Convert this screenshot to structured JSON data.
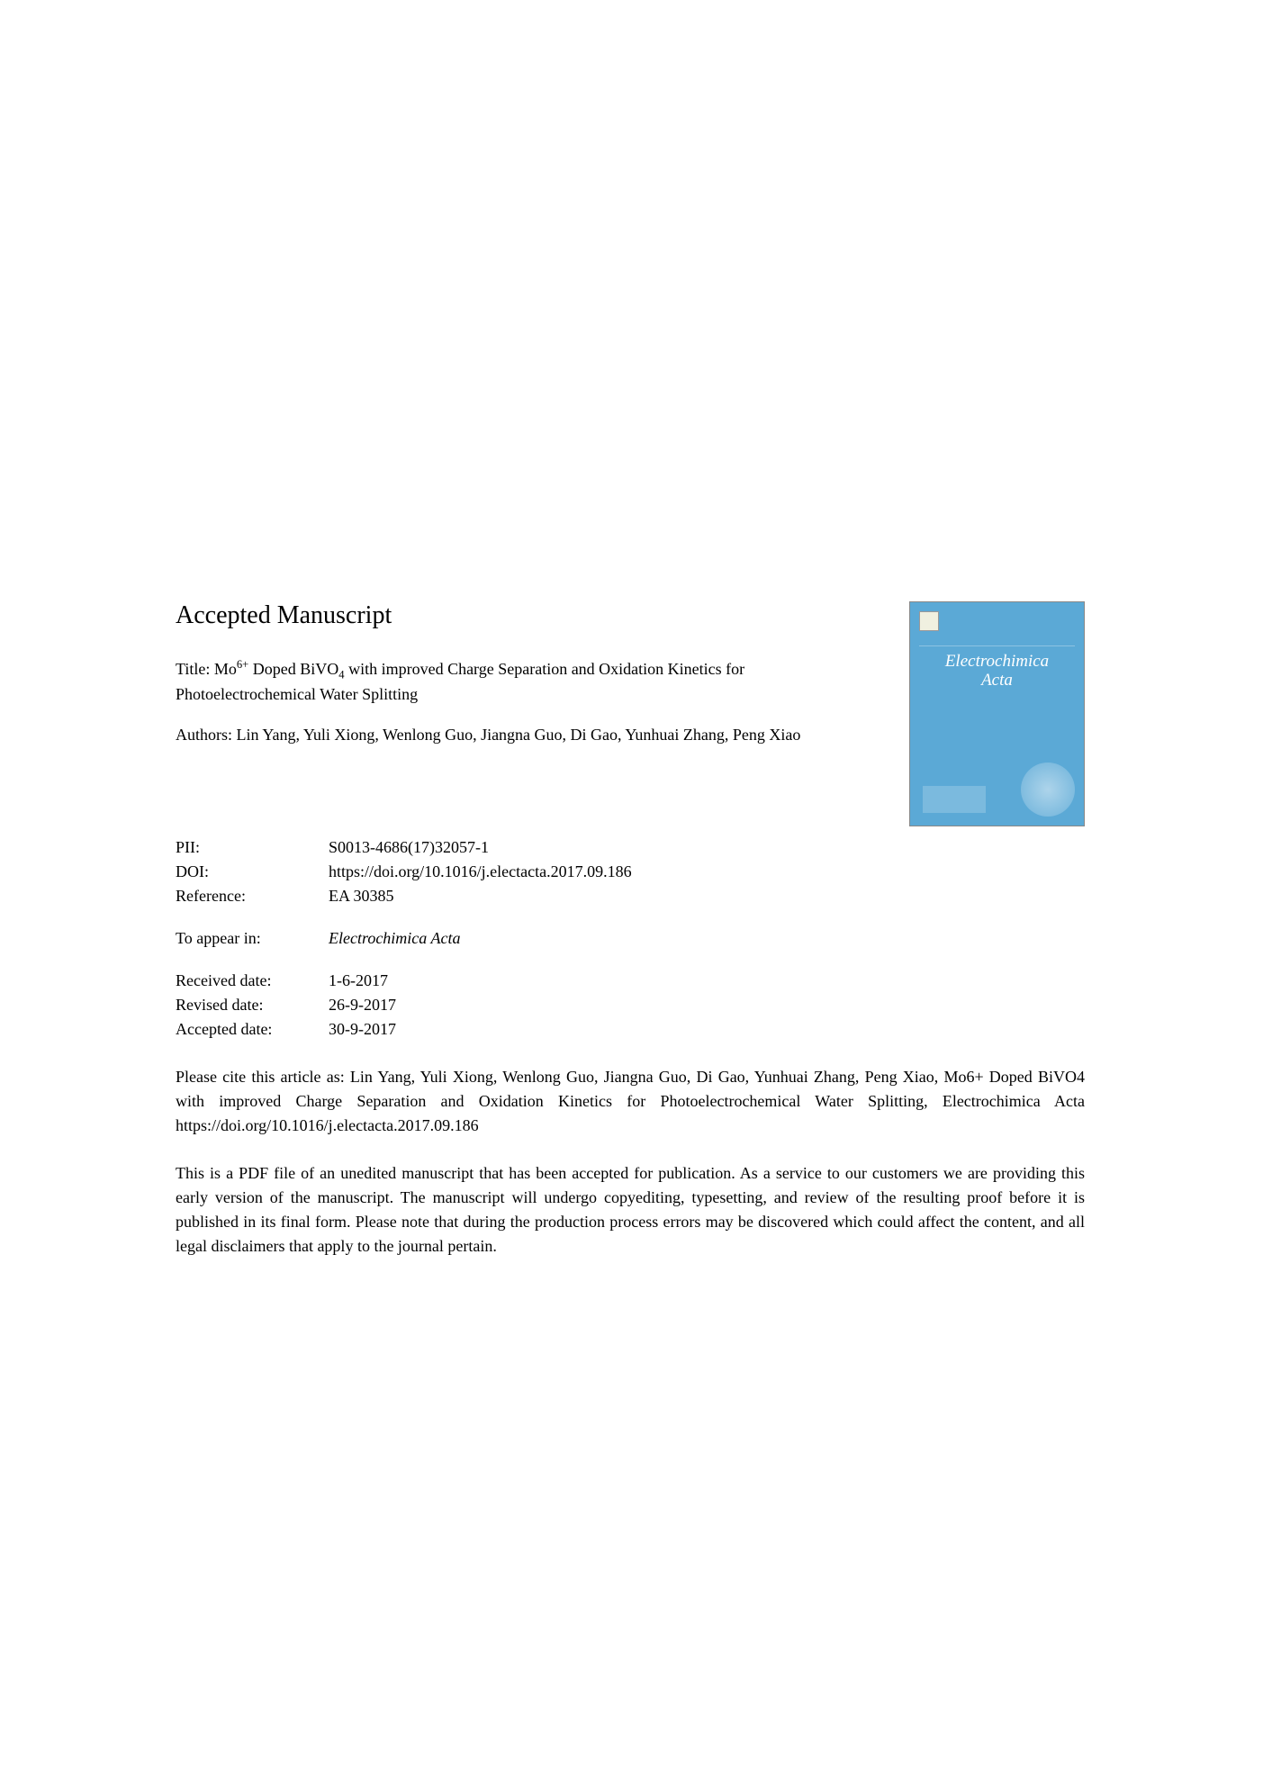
{
  "heading": "Accepted Manuscript",
  "title_prefix": "Title: Mo",
  "title_sup": "6+",
  "title_mid": " Doped BiVO",
  "title_sub": "4",
  "title_suffix": " with improved Charge Separation and Oxidation Kinetics for Photoelectrochemical Water Splitting",
  "authors_prefix": "Authors: ",
  "authors": "Lin Yang, Yuli Xiong, Wenlong Guo, Jiangna Guo, Di Gao, Yunhuai Zhang, Peng Xiao",
  "metadata": {
    "pii_label": "PII:",
    "pii_value": "S0013-4686(17)32057-1",
    "doi_label": "DOI:",
    "doi_value": "https://doi.org/10.1016/j.electacta.2017.09.186",
    "reference_label": "Reference:",
    "reference_value": "EA 30385",
    "appear_label": "To appear in:",
    "appear_value": "Electrochimica Acta",
    "received_label": "Received date:",
    "received_value": "1-6-2017",
    "revised_label": "Revised date:",
    "revised_value": "26-9-2017",
    "accepted_label": "Accepted date:",
    "accepted_value": "30-9-2017"
  },
  "citation": "Please cite this article as: Lin Yang, Yuli Xiong, Wenlong Guo, Jiangna Guo, Di Gao, Yunhuai Zhang, Peng Xiao, Mo6+ Doped BiVO4 with improved Charge Separation and Oxidation Kinetics for Photoelectrochemical Water Splitting, Electrochimica Acta https://doi.org/10.1016/j.electacta.2017.09.186",
  "disclaimer": "This is a PDF file of an unedited manuscript that has been accepted for publication. As a service to our customers we are providing this early version of the manuscript. The manuscript will undergo copyediting, typesetting, and review of the resulting proof before it is published in its final form. Please note that during the production process errors may be discovered which could affect the content, and all legal disclaimers that apply to the journal pertain.",
  "journal_cover": {
    "title_line1": "Electrochimica",
    "title_line2": "Acta",
    "background_color": "#5ba9d6"
  }
}
